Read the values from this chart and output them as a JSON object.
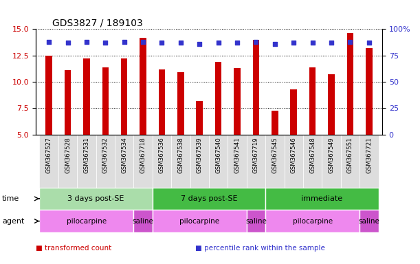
{
  "title": "GDS3827 / 189103",
  "samples": [
    "GSM367527",
    "GSM367528",
    "GSM367531",
    "GSM367532",
    "GSM367534",
    "GSM367718",
    "GSM367536",
    "GSM367538",
    "GSM367539",
    "GSM367540",
    "GSM367541",
    "GSM367719",
    "GSM367545",
    "GSM367546",
    "GSM367548",
    "GSM367549",
    "GSM367551",
    "GSM367721"
  ],
  "bar_values": [
    12.5,
    11.1,
    12.2,
    11.4,
    12.2,
    14.2,
    11.2,
    10.9,
    8.2,
    11.9,
    11.3,
    14.0,
    7.3,
    9.3,
    11.4,
    10.7,
    14.6,
    13.2
  ],
  "dot_values": [
    13.8,
    13.7,
    13.8,
    13.7,
    13.8,
    13.8,
    13.7,
    13.7,
    13.6,
    13.7,
    13.7,
    13.8,
    13.6,
    13.7,
    13.7,
    13.7,
    13.8,
    13.7
  ],
  "ylim_left": [
    5,
    15
  ],
  "ylim_right": [
    0,
    100
  ],
  "yticks_left": [
    5,
    7.5,
    10,
    12.5,
    15
  ],
  "yticks_right": [
    0,
    25,
    50,
    75,
    100
  ],
  "bar_color": "#cc0000",
  "dot_color": "#3333cc",
  "bar_bottom": 5,
  "bar_width": 0.35,
  "groups": [
    {
      "label": "3 days post-SE",
      "start": 0,
      "end": 6,
      "color": "#aaddaa"
    },
    {
      "label": "7 days post-SE",
      "start": 6,
      "end": 12,
      "color": "#44bb44"
    },
    {
      "label": "immediate",
      "start": 12,
      "end": 18,
      "color": "#44bb44"
    }
  ],
  "agents": [
    {
      "label": "pilocarpine",
      "start": 0,
      "end": 5,
      "color": "#ee88ee"
    },
    {
      "label": "saline",
      "start": 5,
      "end": 6,
      "color": "#cc55cc"
    },
    {
      "label": "pilocarpine",
      "start": 6,
      "end": 11,
      "color": "#ee88ee"
    },
    {
      "label": "saline",
      "start": 11,
      "end": 12,
      "color": "#cc55cc"
    },
    {
      "label": "pilocarpine",
      "start": 12,
      "end": 17,
      "color": "#ee88ee"
    },
    {
      "label": "saline",
      "start": 17,
      "end": 18,
      "color": "#cc55cc"
    }
  ],
  "legend_items": [
    {
      "label": "transformed count",
      "color": "#cc0000"
    },
    {
      "label": "percentile rank within the sample",
      "color": "#3333cc"
    }
  ],
  "time_label": "time",
  "agent_label": "agent",
  "background_color": "#ffffff",
  "plot_bg_color": "#ffffff",
  "tick_label_color_left": "#cc0000",
  "tick_label_color_right": "#3333cc",
  "sample_bg_color": "#dddddd"
}
